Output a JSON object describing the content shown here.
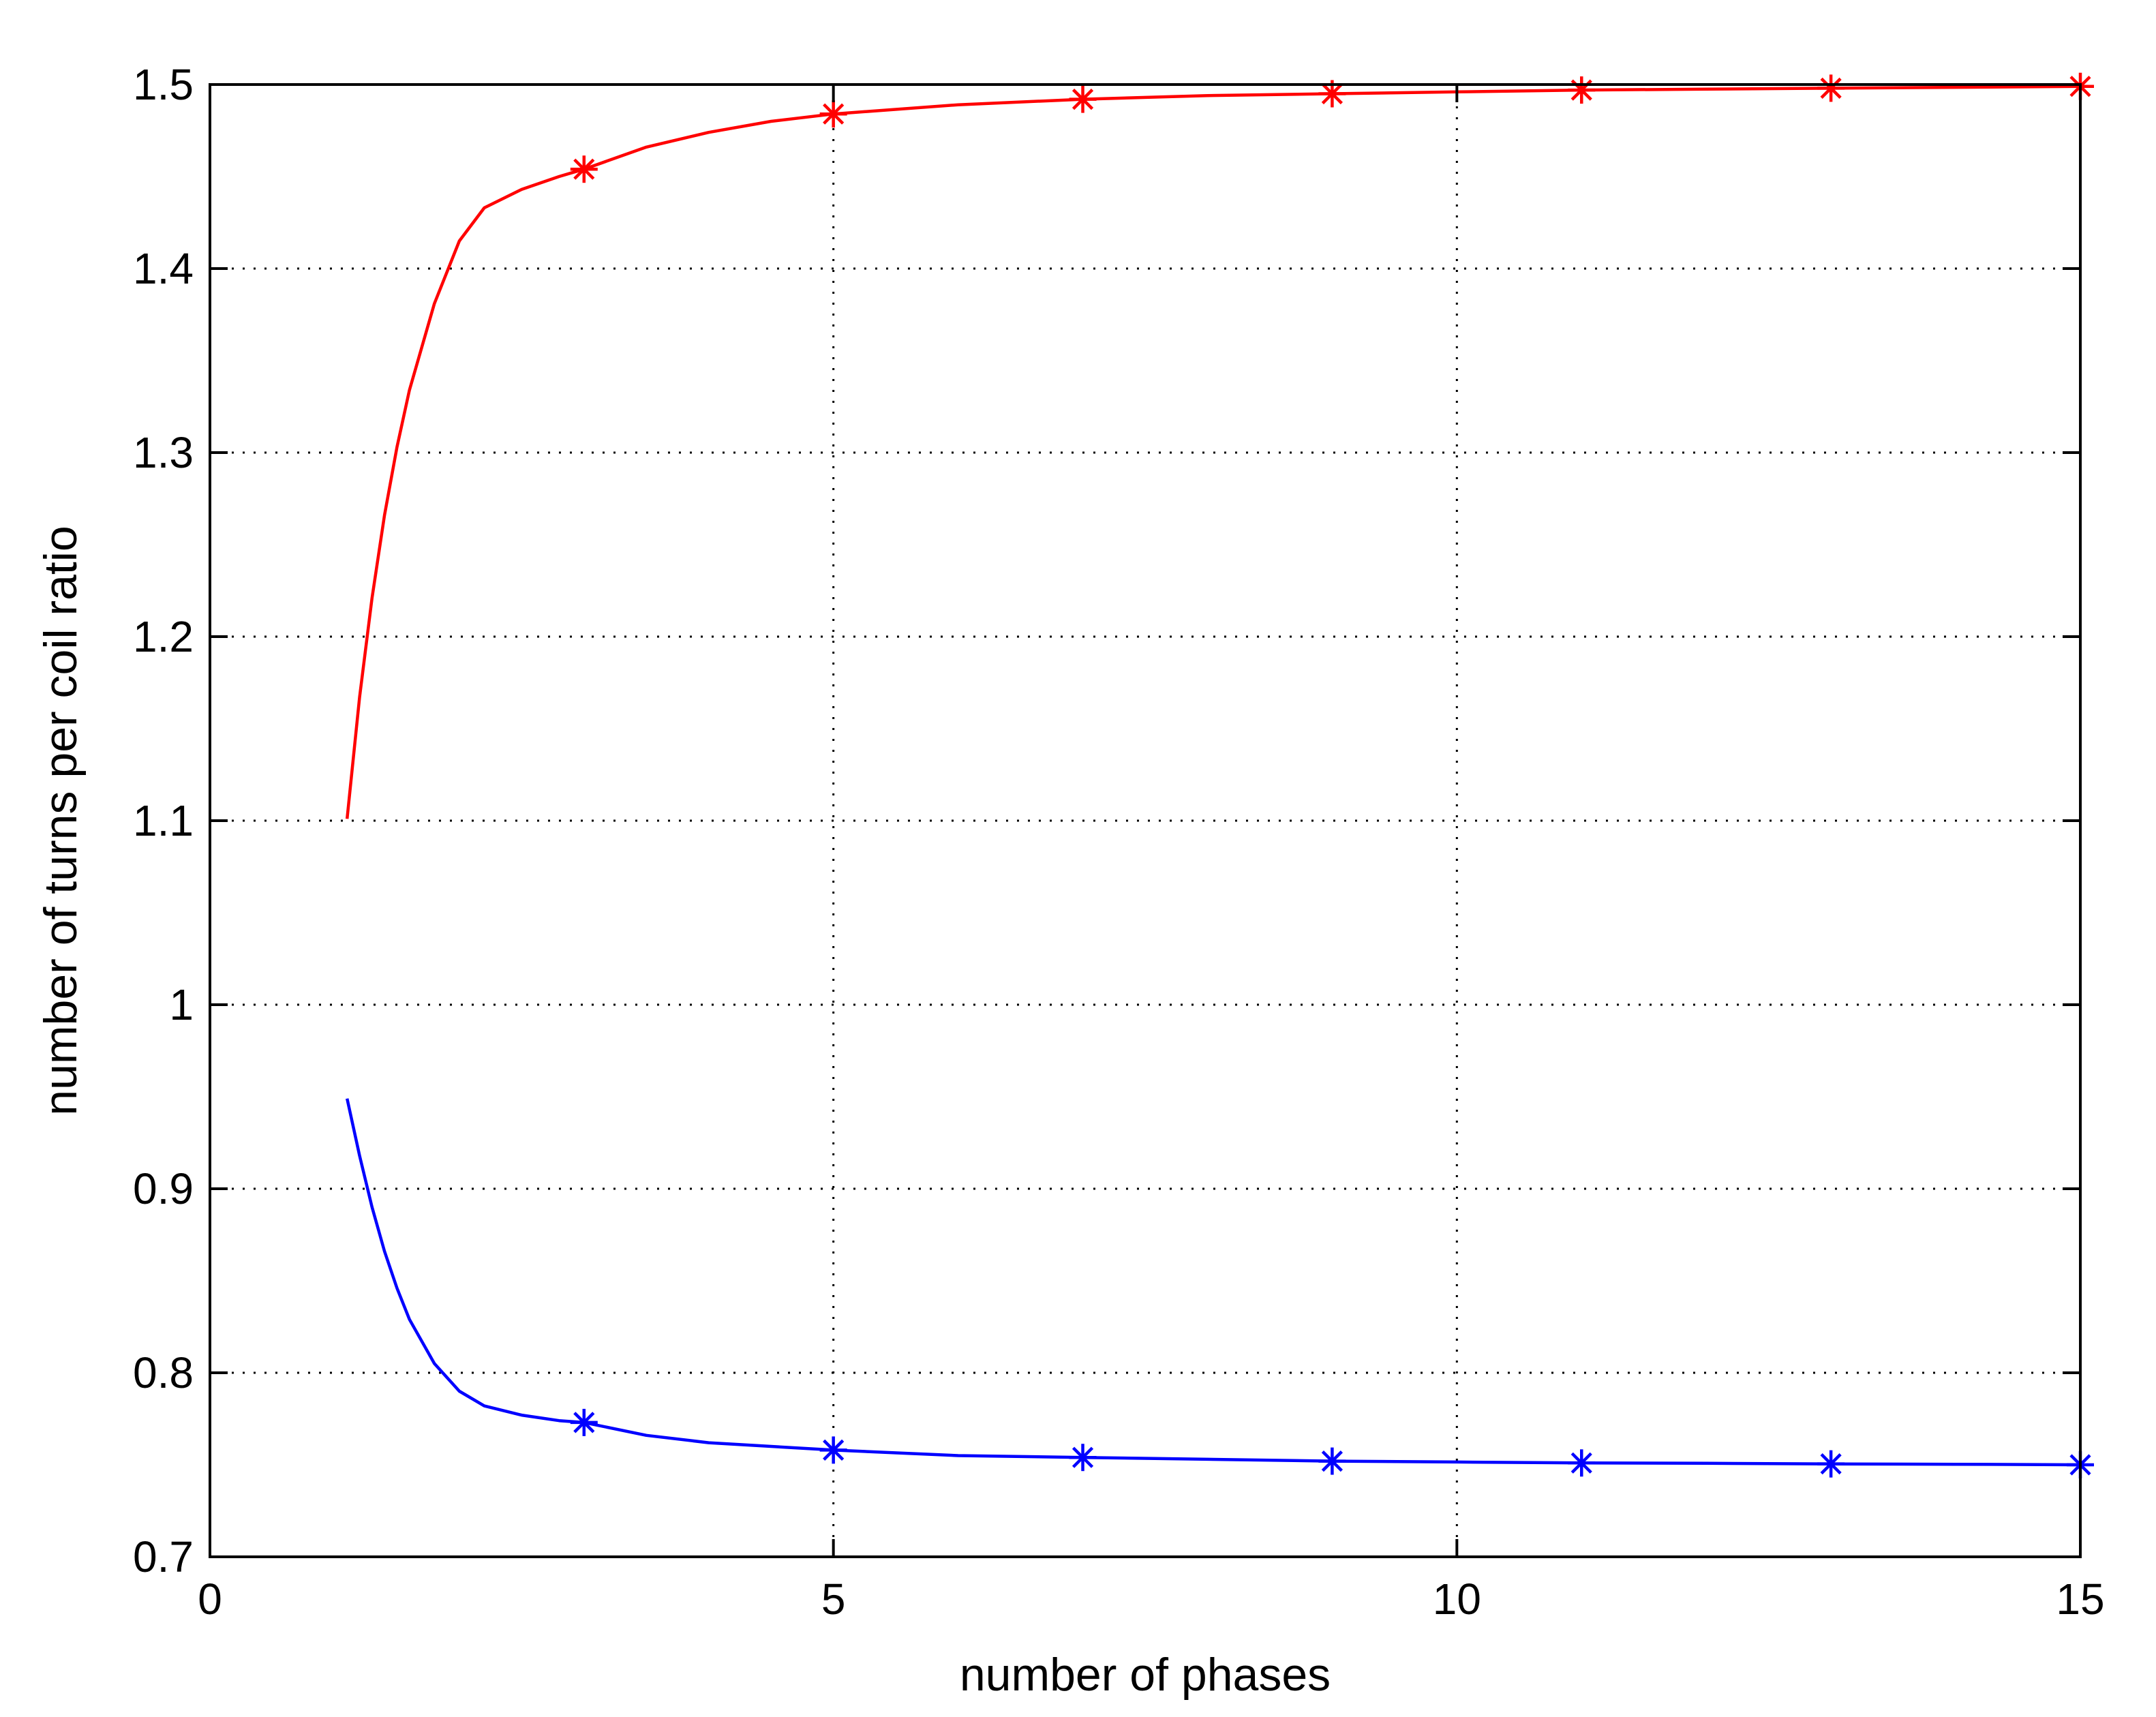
{
  "chart_data": {
    "type": "line",
    "title": "",
    "xlabel": "number of phases",
    "ylabel": "number of turns per coil ratio",
    "xlim": [
      0,
      15
    ],
    "ylim": [
      0.7,
      1.5
    ],
    "x_ticks": [
      0,
      5,
      10,
      15
    ],
    "y_ticks": [
      0.7,
      0.8,
      0.9,
      1.0,
      1.1,
      1.2,
      1.3,
      1.4,
      1.5
    ],
    "x_tick_labels": [
      "0",
      "5",
      "10",
      "15"
    ],
    "y_tick_labels": [
      "0.7",
      "0.8",
      "0.9",
      "1",
      "1.1",
      "1.2",
      "1.3",
      "1.4",
      "1.5"
    ],
    "grid": true,
    "legend": "none",
    "series": [
      {
        "color": "#ff0000",
        "marker": "asterisk",
        "curve": {
          "x": [
            1.1,
            1.2,
            1.3,
            1.4,
            1.5,
            1.6,
            1.8,
            2.0,
            2.2,
            2.5,
            2.8,
            3.0,
            3.5,
            4.0,
            4.5,
            5.0,
            6.0,
            7.0,
            8.0,
            9.0,
            10.0,
            11.0,
            12.0,
            13.0,
            14.0,
            15.0
          ],
          "y": [
            1.101,
            1.167,
            1.221,
            1.266,
            1.303,
            1.334,
            1.381,
            1.415,
            1.433,
            1.443,
            1.45,
            1.454,
            1.466,
            1.474,
            1.48,
            1.484,
            1.489,
            1.492,
            1.494,
            1.495,
            1.496,
            1.497,
            1.4975,
            1.498,
            1.4985,
            1.499
          ]
        },
        "markers": {
          "x": [
            3,
            5,
            7,
            9,
            11,
            13,
            15
          ],
          "y": [
            1.454,
            1.484,
            1.492,
            1.495,
            1.497,
            1.498,
            1.499
          ]
        }
      },
      {
        "color": "#0000ff",
        "marker": "asterisk",
        "curve": {
          "x": [
            1.1,
            1.2,
            1.3,
            1.4,
            1.5,
            1.6,
            1.8,
            2.0,
            2.2,
            2.5,
            2.8,
            3.0,
            3.5,
            4.0,
            4.5,
            5.0,
            6.0,
            7.0,
            8.0,
            9.0,
            10.0,
            11.0,
            12.0,
            13.0,
            14.0,
            15.0
          ],
          "y": [
            0.949,
            0.918,
            0.89,
            0.866,
            0.846,
            0.829,
            0.805,
            0.79,
            0.782,
            0.777,
            0.774,
            0.773,
            0.766,
            0.762,
            0.76,
            0.758,
            0.755,
            0.754,
            0.753,
            0.752,
            0.7515,
            0.751,
            0.7508,
            0.7505,
            0.7503,
            0.75
          ]
        },
        "markers": {
          "x": [
            3,
            5,
            7,
            9,
            11,
            13,
            15
          ],
          "y": [
            0.773,
            0.758,
            0.754,
            0.752,
            0.751,
            0.7505,
            0.75
          ]
        }
      }
    ]
  }
}
